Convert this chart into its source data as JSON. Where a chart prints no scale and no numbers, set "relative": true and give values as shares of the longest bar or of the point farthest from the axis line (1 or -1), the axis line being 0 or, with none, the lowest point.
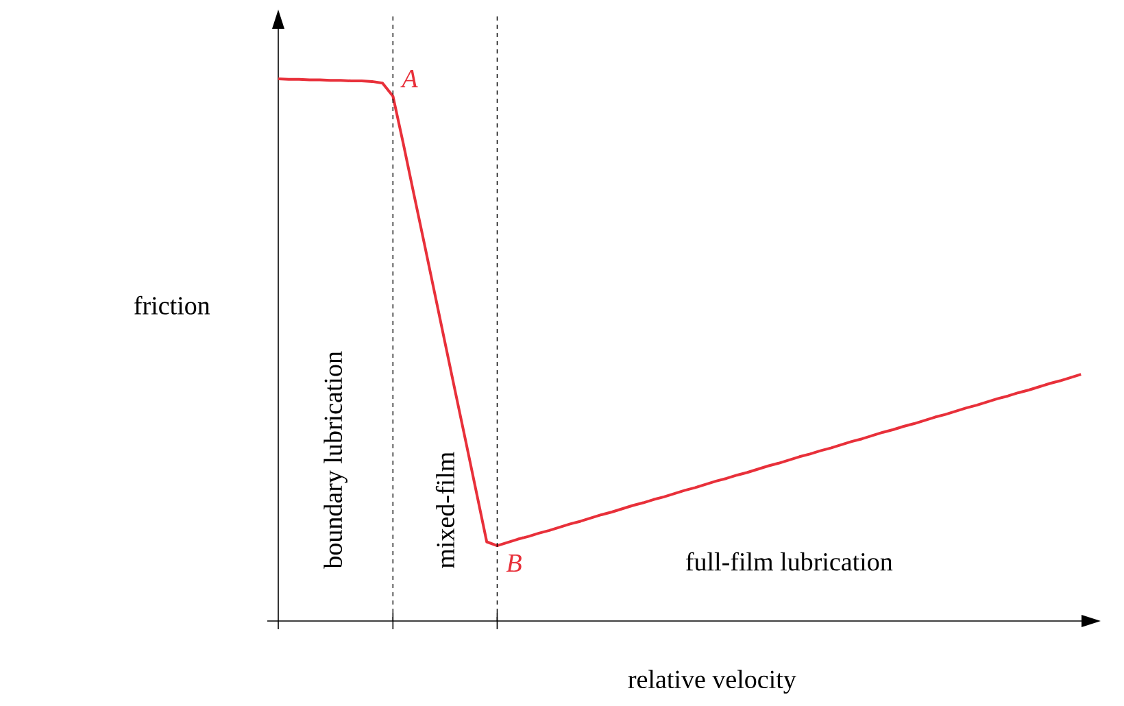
{
  "chart_data": {
    "type": "line",
    "relative": true,
    "xlabel": "relative velocity",
    "ylabel": "friction",
    "categories": [
      null,
      null,
      null,
      null,
      null,
      null,
      null,
      null,
      null,
      null,
      null,
      null,
      null,
      null,
      null,
      null,
      null,
      null,
      null,
      null,
      null,
      null,
      null,
      null,
      null,
      null,
      null,
      null,
      null,
      null,
      null,
      null,
      null,
      null,
      null,
      null,
      null,
      null,
      null,
      null,
      null,
      null,
      null,
      null,
      null,
      null,
      null,
      null,
      null,
      null,
      null,
      null,
      null,
      null,
      null,
      null,
      null,
      null,
      null,
      null,
      null,
      null,
      null,
      null,
      null,
      null,
      null,
      null,
      null,
      null,
      null,
      null,
      null,
      null,
      null,
      null,
      null,
      null
    ],
    "series": [
      {
        "color": "#e8303a",
        "values": [
          1.0,
          0.999,
          0.999,
          0.998,
          0.998,
          0.997,
          0.997,
          0.996,
          0.996,
          0.995,
          0.992,
          0.968,
          0.88,
          0.788,
          0.697,
          0.605,
          0.513,
          0.421,
          0.33,
          0.238,
          0.146,
          0.139,
          0.145,
          0.151,
          0.156,
          0.162,
          0.167,
          0.173,
          0.179,
          0.184,
          0.19,
          0.196,
          0.201,
          0.207,
          0.213,
          0.218,
          0.224,
          0.229,
          0.235,
          0.241,
          0.246,
          0.252,
          0.258,
          0.263,
          0.269,
          0.274,
          0.28,
          0.286,
          0.291,
          0.297,
          0.303,
          0.308,
          0.314,
          0.319,
          0.325,
          0.331,
          0.336,
          0.342,
          0.348,
          0.353,
          0.359,
          0.364,
          0.37,
          0.376,
          0.381,
          0.387,
          0.393,
          0.398,
          0.404,
          0.41,
          0.415,
          0.421,
          0.426,
          0.432,
          0.438,
          0.443,
          0.449,
          0.455
        ]
      }
    ],
    "marker": "none",
    "line_style": "solid",
    "annotations": [
      "A",
      "B",
      "boundary lubrication",
      "mixed-film",
      "full-film lubrication"
    ]
  }
}
